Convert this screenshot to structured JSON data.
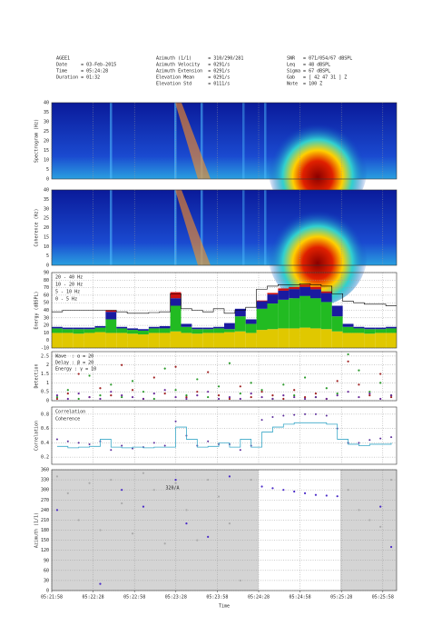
{
  "header": {
    "left": [
      "AGEE1",
      "Date     = 03-Feb-2015",
      "Time     = 05:24:28",
      "Duration = 01:32"
    ],
    "middle": [
      "Azimuth (1/1)      = 310/290/281",
      "Azimuth Velocity   = 0291/s",
      "Azimuth Extension  = 0291/s",
      "Elevation Mean     = 0291/s",
      "Elevation Std      = 0111/s"
    ],
    "right": [
      "SNR   = 071/054/67 dBSPL",
      "Leq   = 48 dBSPL",
      "Sigma = 67 dBSPL",
      "Gab   = [ 42 47 31 ] Z",
      "Note  = 100 Z"
    ]
  },
  "chart_data": [
    {
      "type": "heatmap",
      "ylabel": "Spectrogram (Hz)",
      "ylim": [
        0,
        40
      ],
      "yticks": [
        0,
        5,
        10,
        15,
        20,
        25,
        30,
        35,
        40
      ]
    },
    {
      "type": "heatmap",
      "ylabel": "Coherence (Hz)",
      "ylim": [
        0,
        40
      ],
      "yticks": [
        0,
        5,
        10,
        15,
        20,
        25,
        30,
        35,
        40
      ]
    },
    {
      "type": "stacked_bar",
      "ylabel": "Energy (dBSPL)",
      "ylim": [
        -10,
        90
      ],
      "yticks": [
        -10,
        0,
        10,
        20,
        30,
        40,
        50,
        60,
        70,
        80,
        90
      ],
      "series": [
        {
          "name": "0 - 5 Hz",
          "color": "#e0c800",
          "values": [
            20,
            20,
            19,
            20,
            21,
            20,
            20,
            19,
            18,
            20,
            20,
            22,
            20,
            19,
            20,
            20,
            21,
            22,
            20,
            24,
            25,
            26,
            26,
            27,
            26,
            25,
            22,
            20,
            20,
            19,
            20,
            20
          ]
        },
        {
          "name": "5 - 10 Hz",
          "color": "#22bb22",
          "values": [
            6,
            5,
            6,
            5,
            6,
            18,
            6,
            5,
            5,
            6,
            6,
            34,
            8,
            6,
            5,
            6,
            4,
            20,
            12,
            28,
            34,
            38,
            40,
            42,
            40,
            36,
            20,
            8,
            6,
            6,
            5,
            6
          ]
        },
        {
          "name": "10 - 20 Hz",
          "color": "#1a1aa0",
          "values": [
            2,
            2,
            2,
            2,
            2,
            10,
            2,
            2,
            2,
            2,
            3,
            10,
            4,
            2,
            2,
            2,
            8,
            10,
            6,
            10,
            12,
            12,
            12,
            12,
            12,
            12,
            14,
            4,
            2,
            2,
            2,
            2
          ]
        },
        {
          "name": "20 - 40 Hz",
          "color": "#cc1111",
          "values": [
            0,
            0,
            0,
            0,
            0,
            2,
            0,
            0,
            0,
            0,
            0,
            8,
            0,
            0,
            0,
            0,
            0,
            0,
            0,
            1,
            2,
            3,
            3,
            3,
            3,
            2,
            0,
            0,
            0,
            0,
            0,
            0
          ]
        }
      ],
      "envelope": {
        "color": "#000000",
        "values": [
          38,
          40,
          40,
          40,
          40,
          40,
          38,
          36,
          36,
          37,
          38,
          62,
          42,
          40,
          38,
          42,
          36,
          40,
          44,
          68,
          72,
          74,
          74,
          75,
          74,
          72,
          62,
          52,
          50,
          48,
          48,
          46
        ]
      }
    },
    {
      "type": "scatter",
      "ylabel": "Detection",
      "ylim": [
        0,
        2.75
      ],
      "yticks": [
        0,
        0.5,
        1,
        1.5,
        2,
        2.5
      ],
      "series": [
        {
          "name": "Wave  : α = 20",
          "color": "#2a9a2a",
          "values": [
            0.2,
            0.6,
            0.1,
            1.4,
            0.3,
            0.9,
            0.2,
            1.1,
            0.5,
            0.1,
            1.8,
            0.6,
            0.3,
            1.2,
            0.2,
            0.8,
            2.1,
            0.4,
            1.0,
            0.6,
            0.1,
            0.9,
            0.3,
            1.3,
            0.2,
            0.7,
            0.4,
            2.6,
            1.7,
            0.5,
            1.0,
            0.3
          ]
        },
        {
          "name": "Delay : β = 20",
          "color": "#a02020",
          "values": [
            0.1,
            0.4,
            1.5,
            0.2,
            0.7,
            0.3,
            2.0,
            0.6,
            0.1,
            1.3,
            0.4,
            1.9,
            0.2,
            0.5,
            1.6,
            0.3,
            0.1,
            0.8,
            0.2,
            0.5,
            0.3,
            0.1,
            0.6,
            0.2,
            0.4,
            0.1,
            1.1,
            2.2,
            0.9,
            0.3,
            1.5,
            0.2
          ]
        },
        {
          "name": "Energy : γ = 10",
          "color": "#6a2a9a",
          "values": [
            0.3,
            0.1,
            0.4,
            0.2,
            0.1,
            0.5,
            0.3,
            0.2,
            0.1,
            0.4,
            0.6,
            0.2,
            0.1,
            0.3,
            0.5,
            0.1,
            0.2,
            0.1,
            0.4,
            0.2,
            0.1,
            0.3,
            0.2,
            0.1,
            0.2,
            0.1,
            0.3,
            0.5,
            0.2,
            0.4,
            0.1,
            0.3
          ]
        }
      ]
    },
    {
      "type": "line",
      "ylabel": "Correlation",
      "ylim": [
        0.1,
        0.9
      ],
      "yticks": [
        0.2,
        0.4,
        0.6,
        0.8
      ],
      "series": [
        {
          "name": "Correlation",
          "color": "#5a2a9a",
          "style": "points",
          "values": [
            0.45,
            0.42,
            0.4,
            0.38,
            0.42,
            0.3,
            0.36,
            0.32,
            0.34,
            0.4,
            0.36,
            0.7,
            0.5,
            0.36,
            0.42,
            0.38,
            0.38,
            0.3,
            0.36,
            0.72,
            0.76,
            0.78,
            0.79,
            0.8,
            0.8,
            0.78,
            0.6,
            0.4,
            0.4,
            0.44,
            0.46,
            0.48
          ]
        },
        {
          "name": "Coherence",
          "color": "#3aa8c8",
          "style": "step",
          "values": [
            0.35,
            0.33,
            0.34,
            0.35,
            0.45,
            0.34,
            0.33,
            0.34,
            0.33,
            0.34,
            0.34,
            0.62,
            0.45,
            0.34,
            0.35,
            0.4,
            0.34,
            0.45,
            0.34,
            0.55,
            0.62,
            0.66,
            0.68,
            0.68,
            0.68,
            0.66,
            0.45,
            0.38,
            0.36,
            0.38,
            0.38,
            0.4
          ]
        }
      ]
    },
    {
      "type": "azimuth",
      "ylabel": "Azimuth (1/1)",
      "xlabel": "Time",
      "annotation": "320/A",
      "ylim": [
        0,
        360
      ],
      "yticks": [
        0,
        30,
        60,
        90,
        120,
        150,
        180,
        210,
        240,
        270,
        300,
        330,
        360
      ],
      "xticks": [
        "05:21:58",
        "05:22:28",
        "05:22:58",
        "05:23:28",
        "05:23:58",
        "05:24:28",
        "05:24:58",
        "05:25:28",
        "05:25:58"
      ],
      "series": [
        {
          "color": "#aaaaaa",
          "values": [
            340,
            290,
            210,
            320,
            180,
            330,
            260,
            170,
            350,
            300,
            140,
            320,
            240,
            150,
            330,
            280,
            200,
            30,
            330,
            null,
            null,
            null,
            null,
            null,
            null,
            null,
            null,
            300,
            240,
            210,
            190,
            330
          ]
        },
        {
          "color": "#4a2ac8",
          "values": [
            240,
            null,
            null,
            null,
            20,
            null,
            300,
            null,
            250,
            null,
            null,
            330,
            200,
            null,
            160,
            null,
            340,
            null,
            null,
            310,
            305,
            300,
            295,
            290,
            285,
            283,
            281,
            null,
            null,
            null,
            250,
            130
          ]
        }
      ]
    }
  ]
}
